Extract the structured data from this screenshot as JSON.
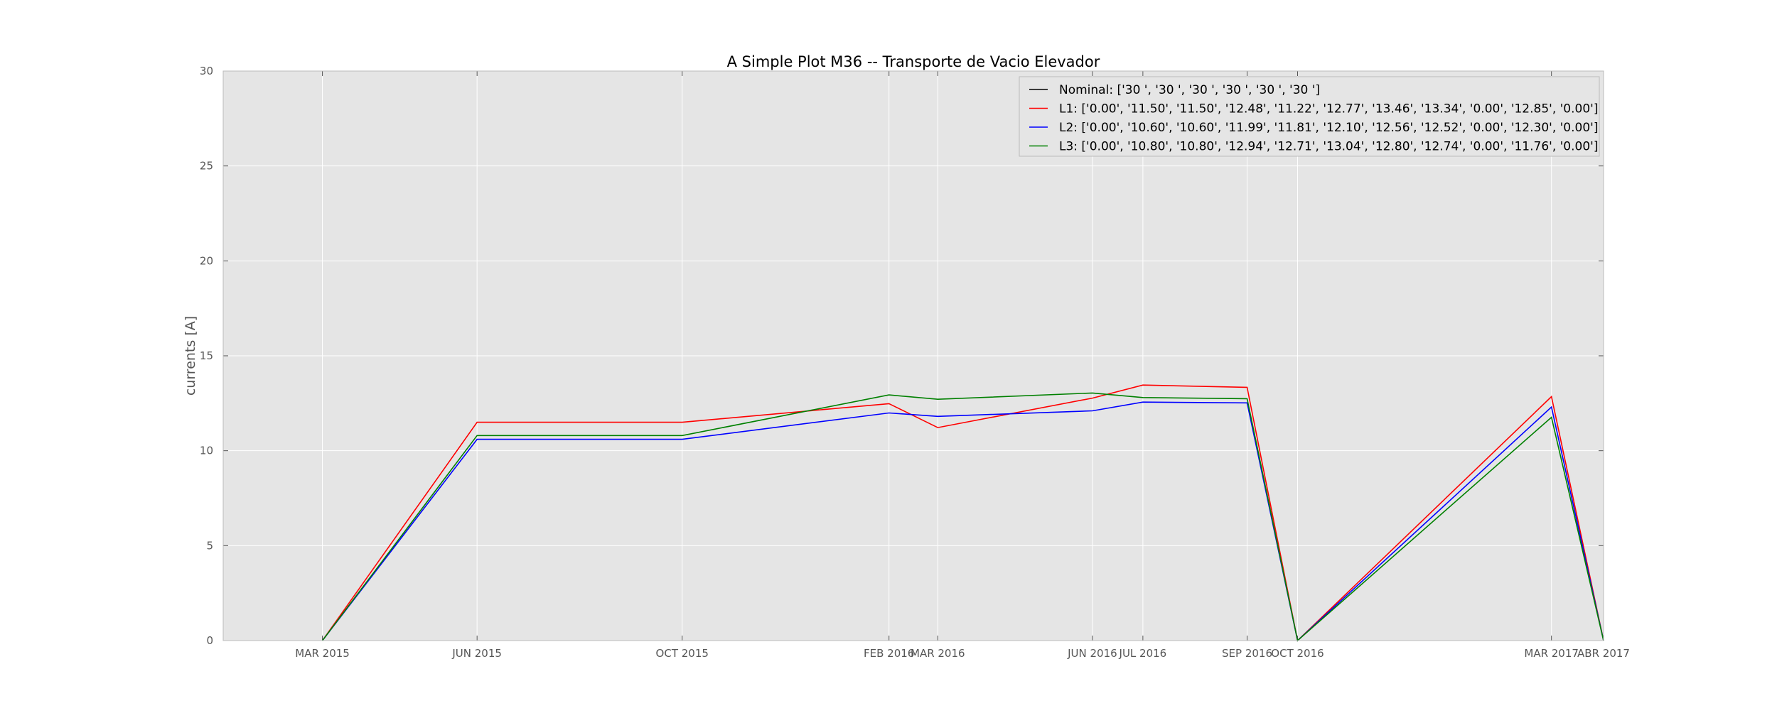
{
  "chart_data": {
    "type": "line",
    "title": "A Simple Plot M36 -- Transporte de Vacio Elevador",
    "xlabel": "",
    "ylabel": "currents [A]",
    "x": [
      "2015-03-01",
      "2015-06-01",
      "2015-10-01",
      "2016-02-01",
      "2016-03-01",
      "2016-06-01",
      "2016-07-01",
      "2016-09-01",
      "2016-10-01",
      "2017-03-01",
      "2017-04-01"
    ],
    "xtick_labels": [
      "MAR 2015",
      "JUN 2015",
      "OCT 2015",
      "FEB 2016",
      "MAR 2016",
      "JUN 2016",
      "JUL 2016",
      "SEP 2016",
      "OCT 2016",
      "MAR 2017",
      "ABR 2017"
    ],
    "ylim": [
      0,
      30
    ],
    "yticks": [
      0,
      5,
      10,
      15,
      20,
      25,
      30
    ],
    "grid": true,
    "legend": {
      "placement": "top-right",
      "entries": [
        "Nominal:  ['30 ', '30 ', '30 ', '30 ', '30 ', '30 ']",
        "L1: ['0.00', '11.50', '11.50', '12.48', '11.22', '12.77', '13.46', '13.34', '0.00', '12.85', '0.00']",
        "L2:  ['0.00', '10.60', '10.60', '11.99', '11.81', '12.10', '12.56', '12.52', '0.00', '12.30', '0.00']",
        "L3: ['0.00', '10.80', '10.80', '12.94', '12.71', '13.04', '12.80', '12.74', '0.00', '11.76', '0.00']"
      ]
    },
    "series": [
      {
        "name": "L1",
        "color": "#ff0000",
        "values": [
          0.0,
          11.5,
          11.5,
          12.48,
          11.22,
          12.77,
          13.46,
          13.34,
          0.0,
          12.85,
          0.0
        ]
      },
      {
        "name": "L2",
        "color": "#0000ff",
        "values": [
          0.0,
          10.6,
          10.6,
          11.99,
          11.81,
          12.1,
          12.56,
          12.52,
          0.0,
          12.3,
          0.0
        ]
      },
      {
        "name": "L3",
        "color": "#008000",
        "values": [
          0.0,
          10.8,
          10.8,
          12.94,
          12.71,
          13.04,
          12.8,
          12.74,
          0.0,
          11.76,
          0.0
        ]
      }
    ],
    "legend_colors": [
      "#000000",
      "#ff0000",
      "#0000ff",
      "#008000"
    ],
    "colors": {
      "plot_background": "#e5e5e5",
      "grid": "#ffffff",
      "axis": "#bcbcbc"
    }
  }
}
